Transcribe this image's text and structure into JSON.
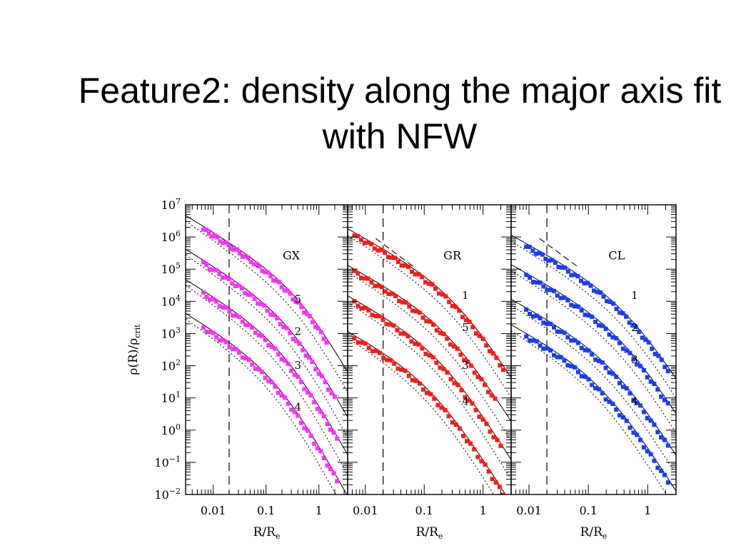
{
  "slide": {
    "title": "Feature2: density along the major axis fit with NFW"
  },
  "chart_data": {
    "type": "scatter",
    "ylabel": "ρ(R)/ρ_crit",
    "ylabel_parts": {
      "main": "ρ(R)/ρ",
      "sub": "crit"
    },
    "yscale": "log",
    "ylim": [
      0.01,
      10000000
    ],
    "y_ticks": [
      {
        "value": 0.01,
        "base": "10",
        "exp": "−2"
      },
      {
        "value": 0.1,
        "base": "10",
        "exp": "−1"
      },
      {
        "value": 1,
        "base": "10",
        "exp": "0"
      },
      {
        "value": 10,
        "base": "10",
        "exp": "1"
      },
      {
        "value": 100,
        "base": "10",
        "exp": "2"
      },
      {
        "value": 1000,
        "base": "10",
        "exp": "3"
      },
      {
        "value": 10000,
        "base": "10",
        "exp": "4"
      },
      {
        "value": 100000,
        "base": "10",
        "exp": "5"
      },
      {
        "value": 1000000,
        "base": "10",
        "exp": "6"
      },
      {
        "value": 10000000,
        "base": "10",
        "exp": "7"
      }
    ],
    "panels": [
      {
        "name": "GX",
        "xlabel_parts": {
          "main": "R/R",
          "sub": "e"
        },
        "xscale": "log",
        "xlim": [
          0.003,
          3.5
        ],
        "x_ticks": [
          {
            "value": 0.01,
            "label": "0.01"
          },
          {
            "value": 0.1,
            "label": "0.1"
          },
          {
            "value": 1,
            "label": "1"
          }
        ],
        "color": "#ff33ff",
        "resolution_limit": 0.02,
        "reference_slope": [
          {
            "x": 0.015,
            "y": 900000
          },
          {
            "x": 0.07,
            "y": 110000
          }
        ],
        "series": [
          {
            "label": "5",
            "label_at": [
              0.4,
              9000
            ],
            "start": 0.0065,
            "end": 1.4,
            "rs": 0.5,
            "norm": 1700000,
            "amp": 1,
            "npts": 45
          },
          {
            "label": "2",
            "label_at": [
              0.4,
              900
            ],
            "start": 0.0065,
            "end": 2.0,
            "rs": 0.32,
            "norm": 150000,
            "amp": 1,
            "npts": 42
          },
          {
            "label": "3",
            "label_at": [
              0.4,
              80
            ],
            "start": 0.0065,
            "end": 2.2,
            "rs": 0.24,
            "norm": 17000,
            "amp": 1,
            "npts": 42
          },
          {
            "label": "4",
            "label_at": [
              0.4,
              4
            ],
            "start": 0.0065,
            "end": 2.2,
            "rs": 0.18,
            "norm": 1500,
            "amp": 1,
            "npts": 42
          }
        ]
      },
      {
        "name": "GR",
        "xlabel_parts": {
          "main": "R/R",
          "sub": "e"
        },
        "xscale": "log",
        "xlim": [
          0.005,
          3.0
        ],
        "x_ticks": [
          {
            "value": 0.01,
            "label": "0.01"
          },
          {
            "value": 0.1,
            "label": "0.1"
          },
          {
            "value": 1,
            "label": "1"
          }
        ],
        "color": "#ff1a1a",
        "resolution_limit": 0.02,
        "reference_slope": [
          {
            "x": 0.015,
            "y": 900000
          },
          {
            "x": 0.07,
            "y": 110000
          }
        ],
        "series": [
          {
            "label": "1",
            "label_at": [
              0.5,
              12000
            ],
            "start": 0.0065,
            "end": 2.2,
            "rs": 0.4,
            "norm": 1100000,
            "amp": 1,
            "npts": 45
          },
          {
            "label": "5",
            "label_at": [
              0.5,
              1200
            ],
            "start": 0.0065,
            "end": 1.6,
            "rs": 0.3,
            "norm": 80000,
            "amp": 1,
            "npts": 42
          },
          {
            "label": "3",
            "label_at": [
              0.5,
              80
            ],
            "start": 0.0065,
            "end": 2.0,
            "rs": 0.22,
            "norm": 9000,
            "amp": 1,
            "npts": 42
          },
          {
            "label": "4",
            "label_at": [
              0.5,
              6
            ],
            "start": 0.0065,
            "end": 2.2,
            "rs": 0.16,
            "norm": 700,
            "amp": 1,
            "npts": 42
          }
        ]
      },
      {
        "name": "CL",
        "xlabel_parts": {
          "main": "R/R",
          "sub": "e"
        },
        "xscale": "log",
        "xlim": [
          0.005,
          3.0
        ],
        "x_ticks": [
          {
            "value": 0.01,
            "label": "0.01"
          },
          {
            "value": 0.1,
            "label": "0.1"
          },
          {
            "value": 1,
            "label": "1"
          }
        ],
        "color": "#1a3cff",
        "resolution_limit": 0.02,
        "reference_slope": [
          {
            "x": 0.015,
            "y": 900000
          },
          {
            "x": 0.07,
            "y": 110000
          }
        ],
        "series": [
          {
            "label": "1",
            "label_at": [
              0.6,
              12000
            ],
            "start": 0.009,
            "end": 2.2,
            "rs": 0.5,
            "norm": 500000,
            "amp": 1,
            "npts": 45
          },
          {
            "label": "2",
            "label_at": [
              0.6,
              1200
            ],
            "start": 0.009,
            "end": 2.2,
            "rs": 0.4,
            "norm": 60000,
            "amp": 1,
            "npts": 42
          },
          {
            "label": "3",
            "label_at": [
              0.6,
              120
            ],
            "start": 0.009,
            "end": 2.2,
            "rs": 0.3,
            "norm": 5000,
            "amp": 1,
            "npts": 42
          },
          {
            "label": "4",
            "label_at": [
              0.6,
              6
            ],
            "start": 0.009,
            "end": 2.2,
            "rs": 0.2,
            "norm": 800,
            "amp": 1,
            "npts": 42
          }
        ]
      }
    ]
  }
}
